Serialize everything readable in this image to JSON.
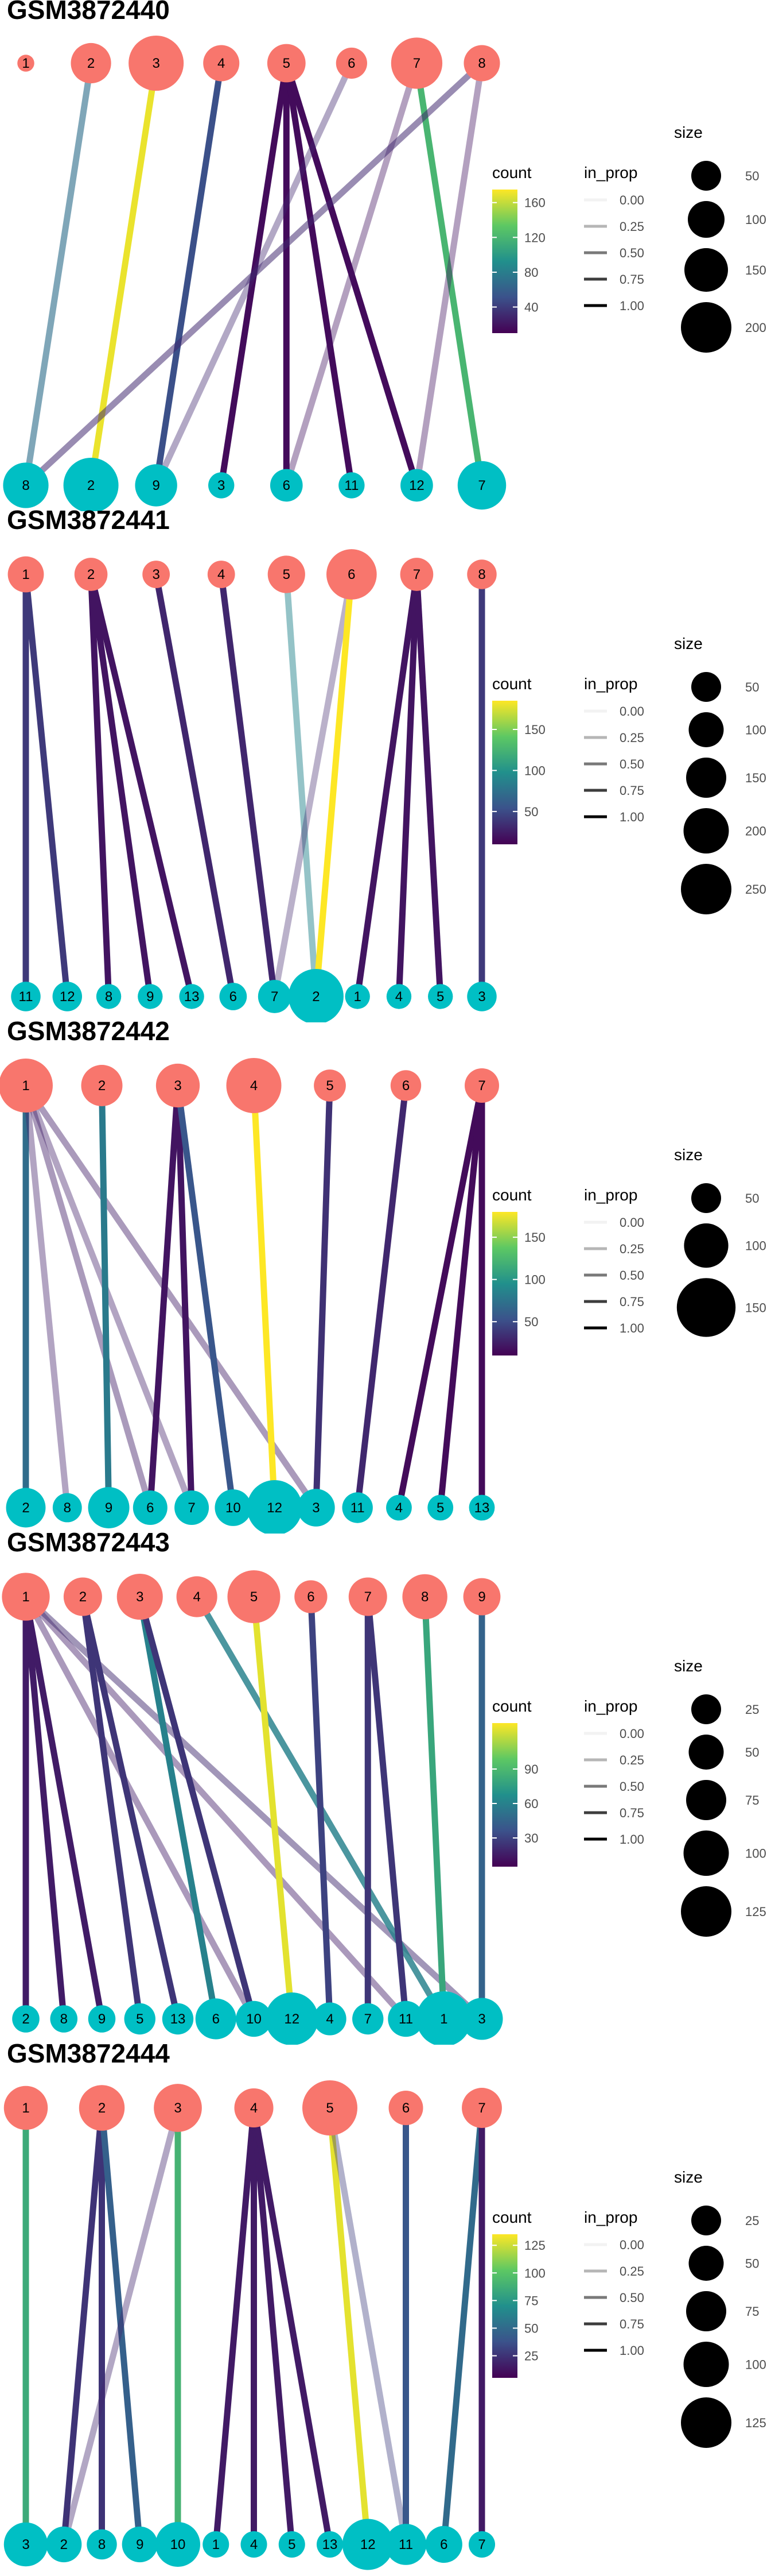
{
  "colors": {
    "source_node": "#F8766D",
    "target_node": "#00BFC4",
    "viridis": [
      "#440154",
      "#3B528B",
      "#21908C",
      "#5DC863",
      "#FDE725"
    ]
  },
  "legend_titles": {
    "count": "count",
    "in_prop": "in_prop",
    "size": "size"
  },
  "panels": [
    {
      "title": "GSM3872440",
      "count_ticks": [
        "160",
        "120",
        "80",
        "40"
      ],
      "count_range": [
        10,
        175
      ],
      "in_prop_ticks": [
        "0.00",
        "0.25",
        "0.50",
        "0.75",
        "1.00"
      ],
      "size_ticks": [
        "50",
        "100",
        "150",
        "200"
      ],
      "source_nodes": [
        "1",
        "2",
        "3",
        "4",
        "5",
        "6",
        "7",
        "8"
      ],
      "target_nodes": [
        "8",
        "2",
        "9",
        "3",
        "6",
        "11",
        "12",
        "7"
      ],
      "links": [
        {
          "from": "2",
          "to": "8",
          "count": 70,
          "in_prop": 0.55
        },
        {
          "from": "3",
          "to": "2",
          "count": 170,
          "in_prop": 1.0
        },
        {
          "from": "4",
          "to": "9",
          "count": 50,
          "in_prop": 1.0
        },
        {
          "from": "5",
          "to": "3",
          "count": 15,
          "in_prop": 1.0
        },
        {
          "from": "5",
          "to": "6",
          "count": 15,
          "in_prop": 1.0
        },
        {
          "from": "5",
          "to": "11",
          "count": 15,
          "in_prop": 1.0
        },
        {
          "from": "5",
          "to": "12",
          "count": 15,
          "in_prop": 1.0
        },
        {
          "from": "6",
          "to": "9",
          "count": 30,
          "in_prop": 0.3
        },
        {
          "from": "7",
          "to": "7",
          "count": 120,
          "in_prop": 1.0
        },
        {
          "from": "7",
          "to": "6",
          "count": 20,
          "in_prop": 0.3
        },
        {
          "from": "8",
          "to": "8",
          "count": 30,
          "in_prop": 0.45
        },
        {
          "from": "8",
          "to": "12",
          "count": 20,
          "in_prop": 0.3
        }
      ]
    },
    {
      "title": "GSM3872441",
      "count_ticks": [
        "150",
        "100",
        "50"
      ],
      "count_range": [
        10,
        185
      ],
      "in_prop_ticks": [
        "0.00",
        "0.25",
        "0.50",
        "0.75",
        "1.00"
      ],
      "size_ticks": [
        "50",
        "100",
        "150",
        "200",
        "250"
      ],
      "source_nodes": [
        "1",
        "2",
        "3",
        "4",
        "5",
        "6",
        "7",
        "8"
      ],
      "target_nodes": [
        "11",
        "12",
        "8",
        "9",
        "13",
        "6",
        "7",
        "2",
        "1",
        "4",
        "5",
        "3"
      ],
      "links": [
        {
          "from": "1",
          "to": "11",
          "count": 40,
          "in_prop": 1.0
        },
        {
          "from": "1",
          "to": "12",
          "count": 40,
          "in_prop": 1.0
        },
        {
          "from": "2",
          "to": "8",
          "count": 20,
          "in_prop": 1.0
        },
        {
          "from": "2",
          "to": "9",
          "count": 20,
          "in_prop": 1.0
        },
        {
          "from": "2",
          "to": "13",
          "count": 20,
          "in_prop": 1.0
        },
        {
          "from": "3",
          "to": "6",
          "count": 30,
          "in_prop": 1.0
        },
        {
          "from": "4",
          "to": "7",
          "count": 30,
          "in_prop": 1.0
        },
        {
          "from": "5",
          "to": "2",
          "count": 90,
          "in_prop": 0.4
        },
        {
          "from": "6",
          "to": "7",
          "count": 30,
          "in_prop": 0.25
        },
        {
          "from": "6",
          "to": "2",
          "count": 185,
          "in_prop": 1.0
        },
        {
          "from": "7",
          "to": "1",
          "count": 20,
          "in_prop": 1.0
        },
        {
          "from": "7",
          "to": "4",
          "count": 20,
          "in_prop": 1.0
        },
        {
          "from": "7",
          "to": "5",
          "count": 20,
          "in_prop": 1.0
        },
        {
          "from": "8",
          "to": "3",
          "count": 40,
          "in_prop": 1.0
        }
      ]
    },
    {
      "title": "GSM3872442",
      "count_ticks": [
        "150",
        "100",
        "50"
      ],
      "count_range": [
        10,
        180
      ],
      "in_prop_ticks": [
        "0.00",
        "0.25",
        "0.50",
        "0.75",
        "1.00"
      ],
      "size_ticks": [
        "50",
        "100",
        "150"
      ],
      "source_nodes": [
        "1",
        "2",
        "3",
        "4",
        "5",
        "6",
        "7"
      ],
      "target_nodes": [
        "2",
        "8",
        "9",
        "6",
        "7",
        "10",
        "12",
        "3",
        "11",
        "4",
        "5",
        "13"
      ],
      "links": [
        {
          "from": "1",
          "to": "2",
          "count": 70,
          "in_prop": 1.0
        },
        {
          "from": "1",
          "to": "8",
          "count": 25,
          "in_prop": 0.3
        },
        {
          "from": "1",
          "to": "6",
          "count": 25,
          "in_prop": 0.35
        },
        {
          "from": "1",
          "to": "7",
          "count": 25,
          "in_prop": 0.3
        },
        {
          "from": "1",
          "to": "3",
          "count": 25,
          "in_prop": 0.35
        },
        {
          "from": "2",
          "to": "9",
          "count": 80,
          "in_prop": 1.0
        },
        {
          "from": "3",
          "to": "6",
          "count": 20,
          "in_prop": 1.0
        },
        {
          "from": "3",
          "to": "7",
          "count": 20,
          "in_prop": 1.0
        },
        {
          "from": "3",
          "to": "10",
          "count": 55,
          "in_prop": 1.0
        },
        {
          "from": "4",
          "to": "12",
          "count": 180,
          "in_prop": 1.0
        },
        {
          "from": "5",
          "to": "3",
          "count": 35,
          "in_prop": 1.0
        },
        {
          "from": "6",
          "to": "11",
          "count": 30,
          "in_prop": 1.0
        },
        {
          "from": "7",
          "to": "4",
          "count": 15,
          "in_prop": 1.0
        },
        {
          "from": "7",
          "to": "5",
          "count": 15,
          "in_prop": 1.0
        },
        {
          "from": "7",
          "to": "13",
          "count": 15,
          "in_prop": 1.0
        }
      ]
    },
    {
      "title": "GSM3872443",
      "count_ticks": [
        "90",
        "60",
        "30"
      ],
      "count_range": [
        5,
        130
      ],
      "in_prop_ticks": [
        "0.00",
        "0.25",
        "0.50",
        "0.75",
        "1.00"
      ],
      "size_ticks": [
        "25",
        "50",
        "75",
        "100",
        "125"
      ],
      "source_nodes": [
        "1",
        "2",
        "3",
        "4",
        "5",
        "6",
        "7",
        "8",
        "9"
      ],
      "target_nodes": [
        "2",
        "8",
        "9",
        "5",
        "13",
        "6",
        "10",
        "12",
        "4",
        "7",
        "11",
        "1",
        "3"
      ],
      "links": [
        {
          "from": "1",
          "to": "2",
          "count": 15,
          "in_prop": 1.0
        },
        {
          "from": "1",
          "to": "8",
          "count": 15,
          "in_prop": 1.0
        },
        {
          "from": "1",
          "to": "9",
          "count": 15,
          "in_prop": 1.0
        },
        {
          "from": "1",
          "to": "10",
          "count": 15,
          "in_prop": 0.35
        },
        {
          "from": "1",
          "to": "11",
          "count": 15,
          "in_prop": 0.35
        },
        {
          "from": "1",
          "to": "3",
          "count": 20,
          "in_prop": 0.4
        },
        {
          "from": "2",
          "to": "5",
          "count": 25,
          "in_prop": 1.0
        },
        {
          "from": "2",
          "to": "13",
          "count": 25,
          "in_prop": 1.0
        },
        {
          "from": "3",
          "to": "6",
          "count": 60,
          "in_prop": 1.0
        },
        {
          "from": "3",
          "to": "10",
          "count": 25,
          "in_prop": 1.0
        },
        {
          "from": "4",
          "to": "1",
          "count": 60,
          "in_prop": 0.8
        },
        {
          "from": "5",
          "to": "12",
          "count": 125,
          "in_prop": 1.0
        },
        {
          "from": "6",
          "to": "4",
          "count": 30,
          "in_prop": 1.0
        },
        {
          "from": "7",
          "to": "7",
          "count": 25,
          "in_prop": 1.0
        },
        {
          "from": "7",
          "to": "11",
          "count": 25,
          "in_prop": 1.0
        },
        {
          "from": "8",
          "to": "1",
          "count": 80,
          "in_prop": 1.0
        },
        {
          "from": "9",
          "to": "3",
          "count": 45,
          "in_prop": 1.0
        }
      ]
    },
    {
      "title": "GSM3872444",
      "count_ticks": [
        "125",
        "100",
        "75",
        "50",
        "25"
      ],
      "count_range": [
        5,
        135
      ],
      "in_prop_ticks": [
        "0.00",
        "0.25",
        "0.50",
        "0.75",
        "1.00"
      ],
      "size_ticks": [
        "25",
        "50",
        "75",
        "100",
        "125"
      ],
      "source_nodes": [
        "1",
        "2",
        "3",
        "4",
        "5",
        "6",
        "7"
      ],
      "target_nodes": [
        "3",
        "2",
        "8",
        "9",
        "10",
        "1",
        "4",
        "5",
        "13",
        "12",
        "11",
        "6",
        "7"
      ],
      "links": [
        {
          "from": "1",
          "to": "3",
          "count": 85,
          "in_prop": 1.0
        },
        {
          "from": "2",
          "to": "2",
          "count": 25,
          "in_prop": 1.0
        },
        {
          "from": "2",
          "to": "8",
          "count": 25,
          "in_prop": 1.0
        },
        {
          "from": "2",
          "to": "9",
          "count": 45,
          "in_prop": 1.0
        },
        {
          "from": "3",
          "to": "2",
          "count": 20,
          "in_prop": 0.3
        },
        {
          "from": "3",
          "to": "10",
          "count": 90,
          "in_prop": 1.0
        },
        {
          "from": "4",
          "to": "1",
          "count": 15,
          "in_prop": 1.0
        },
        {
          "from": "4",
          "to": "4",
          "count": 15,
          "in_prop": 1.0
        },
        {
          "from": "4",
          "to": "5",
          "count": 15,
          "in_prop": 1.0
        },
        {
          "from": "4",
          "to": "13",
          "count": 15,
          "in_prop": 1.0
        },
        {
          "from": "5",
          "to": "12",
          "count": 130,
          "in_prop": 1.0
        },
        {
          "from": "5",
          "to": "11",
          "count": 30,
          "in_prop": 0.3
        },
        {
          "from": "6",
          "to": "11",
          "count": 40,
          "in_prop": 1.0
        },
        {
          "from": "7",
          "to": "6",
          "count": 50,
          "in_prop": 1.0
        },
        {
          "from": "7",
          "to": "7",
          "count": 15,
          "in_prop": 1.0
        }
      ]
    }
  ]
}
